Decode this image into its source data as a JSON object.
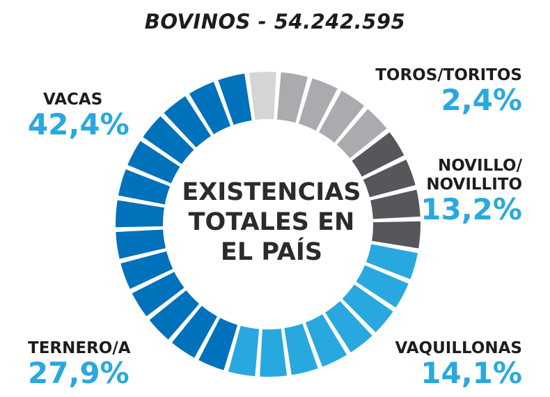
{
  "title": "BOVINOS - 54.242.595",
  "center_label": [
    "EXISTENCIAS",
    "TOTALES EN",
    "EL PAÍS"
  ],
  "chart_data": {
    "type": "pie",
    "style": "donut",
    "title": "BOVINOS - 54.242.595",
    "center_text": "EXISTENCIAS TOTALES EN EL PAÍS",
    "unit": "%",
    "segments_total": 30,
    "categories": [
      {
        "name": "TOROS/TORITOS",
        "value_label": "2,4%",
        "value": 2.4,
        "color": "#d4d5d6",
        "segments": 1
      },
      {
        "name_lines": [
          "NOVILLO/",
          "NOVILLITO"
        ],
        "name": "NOVILLO/NOVILLITO",
        "value_label": "13,2%",
        "value": 13.2,
        "color": "#a9abae",
        "segments": 4
      },
      {
        "name": "VAQUILLONAS",
        "value_label": "14,1%",
        "value": 14.1,
        "color": "#55575a",
        "segments": 4
      },
      {
        "name": "TERNERO/A",
        "value_label": "27,9%",
        "value": 27.9,
        "color": "#29a8e0",
        "segments": 8
      },
      {
        "name": "VACAS",
        "value_label": "42,4%",
        "value": 42.4,
        "color": "#0071bb",
        "segments": 13
      }
    ]
  }
}
